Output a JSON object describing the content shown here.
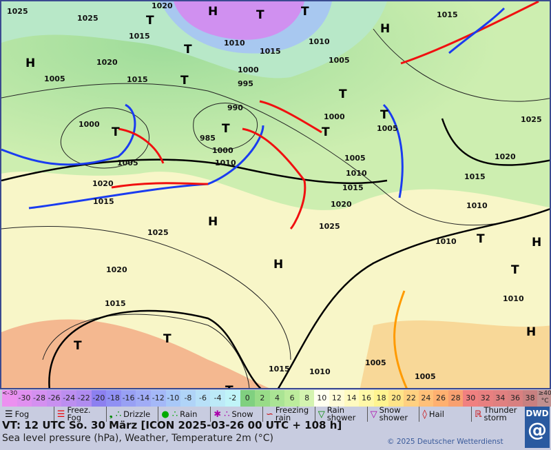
{
  "map": {
    "pressure_centers": [
      "H",
      "H",
      "T",
      "T",
      "H",
      "T",
      "T",
      "T",
      "T",
      "H",
      "T",
      "H",
      "T",
      "T",
      "T",
      "T",
      "H",
      "T",
      "H",
      "T",
      "T",
      "T"
    ],
    "isobar_labels": [
      "1025",
      "1025",
      "1015",
      "1005",
      "1020",
      "1020",
      "1010",
      "1015",
      "1010",
      "1000",
      "995",
      "1005",
      "1005",
      "1015",
      "1000",
      "990",
      "985",
      "1000",
      "1010",
      "1005",
      "1000",
      "1005",
      "1010",
      "1015",
      "1015",
      "1020",
      "1020",
      "1025",
      "1025",
      "1020",
      "1015",
      "1015",
      "1010",
      "1010",
      "1010",
      "1005",
      "1025",
      "1020",
      "1015",
      "1010",
      "1005",
      "1015"
    ],
    "fronts": {
      "cold_color": "#1a3cf0",
      "warm_color": "#f01010",
      "trough_color": "#ff9a00"
    }
  },
  "temperature_scale": [
    {
      "label": "<-30",
      "color": "#ec90f0"
    },
    {
      "label": "-30",
      "color": "#e090f0"
    },
    {
      "label": "-28",
      "color": "#d490f0"
    },
    {
      "label": "-26",
      "color": "#c890f0"
    },
    {
      "label": "-24",
      "color": "#bc8ef0"
    },
    {
      "label": "-22",
      "color": "#b08cf0"
    },
    {
      "label": "-20",
      "color": "#8c80f0"
    },
    {
      "label": "-18",
      "color": "#9090f4"
    },
    {
      "label": "-16",
      "color": "#98a0f4"
    },
    {
      "label": "-14",
      "color": "#a0acf6"
    },
    {
      "label": "-12",
      "color": "#a4b8f8"
    },
    {
      "label": "-10",
      "color": "#a8c8f8"
    },
    {
      "label": "-8",
      "color": "#b0d4f8"
    },
    {
      "label": "-6",
      "color": "#b8e0f8"
    },
    {
      "label": "-4",
      "color": "#bceaf8"
    },
    {
      "label": "-2",
      "color": "#c0f4f8"
    },
    {
      "label": "0",
      "color": "#80d080"
    },
    {
      "label": "2",
      "color": "#98dc88"
    },
    {
      "label": "4",
      "color": "#aae494"
    },
    {
      "label": "6",
      "color": "#bcec9c"
    },
    {
      "label": "8",
      "color": "#d4f4b0"
    },
    {
      "label": "10",
      "color": "#fffff0"
    },
    {
      "label": "12",
      "color": "#fffcd8"
    },
    {
      "label": "14",
      "color": "#fffac0"
    },
    {
      "label": "16",
      "color": "#fff8a8"
    },
    {
      "label": "18",
      "color": "#fff490"
    },
    {
      "label": "20",
      "color": "#ffe488"
    },
    {
      "label": "22",
      "color": "#ffd080"
    },
    {
      "label": "24",
      "color": "#ffc078"
    },
    {
      "label": "26",
      "color": "#ffb070"
    },
    {
      "label": "28",
      "color": "#f8a070"
    },
    {
      "label": "30",
      "color": "#f08080"
    },
    {
      "label": "32",
      "color": "#e88080"
    },
    {
      "label": "34",
      "color": "#e08080"
    },
    {
      "label": "36",
      "color": "#d88080"
    },
    {
      "label": "38",
      "color": "#c88080"
    },
    {
      "label": "≥40 °C",
      "color": "#c09090"
    }
  ],
  "legend": [
    {
      "icon": "fog-icon",
      "symbol": "☰",
      "color": "#000",
      "label": "Fog"
    },
    {
      "icon": "freezing-fog-icon",
      "symbol": "☰",
      "color": "#e00",
      "label": "Freez. Fog"
    },
    {
      "icon": "drizzle-icon",
      "symbol": "❟ ∴",
      "color": "#080",
      "label": "Drizzle"
    },
    {
      "icon": "rain-icon",
      "symbol": "● ∴",
      "color": "#0a0",
      "label": "Rain"
    },
    {
      "icon": "snow-icon",
      "symbol": "✱ ∴",
      "color": "#a0a",
      "label": "Snow"
    },
    {
      "icon": "freezing-rain-icon",
      "symbol": "∽",
      "color": "#c00",
      "label": "Freezing rain"
    },
    {
      "icon": "rain-shower-icon",
      "symbol": "▽",
      "color": "#080",
      "label": "Rain shower"
    },
    {
      "icon": "snow-shower-icon",
      "symbol": "▽",
      "color": "#a0a",
      "label": "Snow shower"
    },
    {
      "icon": "hail-icon",
      "symbol": "◊",
      "color": "#c00",
      "label": "Hail"
    },
    {
      "icon": "thunderstorm-icon",
      "symbol": "ℝ",
      "color": "#c00",
      "label": "Thunder storm"
    }
  ],
  "footer": {
    "valid_time": "VT: 12 UTC So.  30 März [ICON 2025-03-26  00 UTC + 108 h]",
    "subtitle": "Sea level pressure (hPa), Weather, Temperature 2m (°C)",
    "copyright": "© 2025 Deutscher Wetterdienst",
    "logo": "DWD"
  }
}
